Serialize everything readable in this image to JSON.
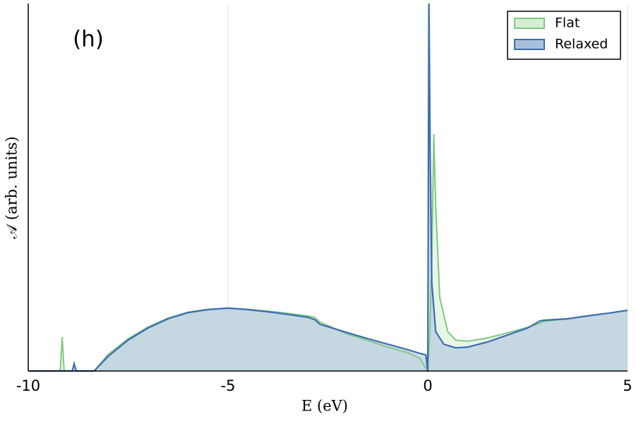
{
  "chart_data": {
    "type": "area",
    "annotation": "(h)",
    "x_label": "E (eV)",
    "y_label": "𝒜 (arb. units)",
    "xlim": [
      -10,
      5
    ],
    "xticks": [
      -10,
      -5,
      0,
      5
    ],
    "ylim": [
      0,
      1
    ],
    "grid": true,
    "legend": "upper right",
    "series": [
      {
        "name": "Flat",
        "color": "#82c882",
        "fill": "#d4efd4",
        "x": [
          -10,
          -9.2,
          -9.15,
          -9.1,
          -8.35,
          -8,
          -7.5,
          -7,
          -6.5,
          -6,
          -5.5,
          -5,
          -4.5,
          -4,
          -3.5,
          -3,
          -2.83,
          -2.7,
          -2,
          -1.5,
          -1,
          -0.5,
          -0.2,
          0,
          0.05,
          0.1,
          0.15,
          0.2,
          0.3,
          0.5,
          0.7,
          1,
          1.5,
          2,
          2.5,
          2.81,
          2.9,
          3.5,
          4,
          4.5,
          5
        ],
        "values": [
          0,
          0,
          0.092,
          0,
          0,
          0.045,
          0.088,
          0.12,
          0.144,
          0.16,
          0.168,
          0.171,
          0.168,
          0.163,
          0.157,
          0.15,
          0.146,
          0.133,
          0.1,
          0.083,
          0.065,
          0.05,
          0.035,
          0,
          0.1,
          0.3,
          0.645,
          0.45,
          0.2,
          0.107,
          0.084,
          0.081,
          0.09,
          0.104,
          0.119,
          0.13,
          0.135,
          0.142,
          0.15,
          0.157,
          0.165
        ]
      },
      {
        "name": "Relaxed",
        "color": "#3b6db3",
        "fill": "#a9c0dc",
        "x": [
          -10,
          -8.9,
          -8.85,
          -8.8,
          -8.35,
          -8,
          -7.5,
          -7,
          -6.5,
          -6,
          -5.5,
          -5,
          -4.5,
          -4,
          -3.5,
          -3,
          -2.83,
          -2.7,
          -2,
          -1.5,
          -1,
          -0.5,
          -0.2,
          -0.05,
          0,
          0.03,
          0.06,
          0.1,
          0.2,
          0.4,
          0.7,
          1,
          1.5,
          2,
          2.5,
          2.81,
          2.9,
          3.5,
          4,
          4.5,
          5
        ],
        "values": [
          0,
          0,
          0.02,
          0,
          0,
          0.04,
          0.084,
          0.117,
          0.142,
          0.159,
          0.167,
          0.171,
          0.167,
          0.161,
          0.154,
          0.146,
          0.14,
          0.127,
          0.104,
          0.088,
          0.073,
          0.058,
          0.048,
          0.044,
          0,
          1,
          0.6,
          0.24,
          0.107,
          0.073,
          0.063,
          0.065,
          0.079,
          0.098,
          0.117,
          0.136,
          0.138,
          0.142,
          0.15,
          0.157,
          0.165
        ]
      }
    ]
  }
}
